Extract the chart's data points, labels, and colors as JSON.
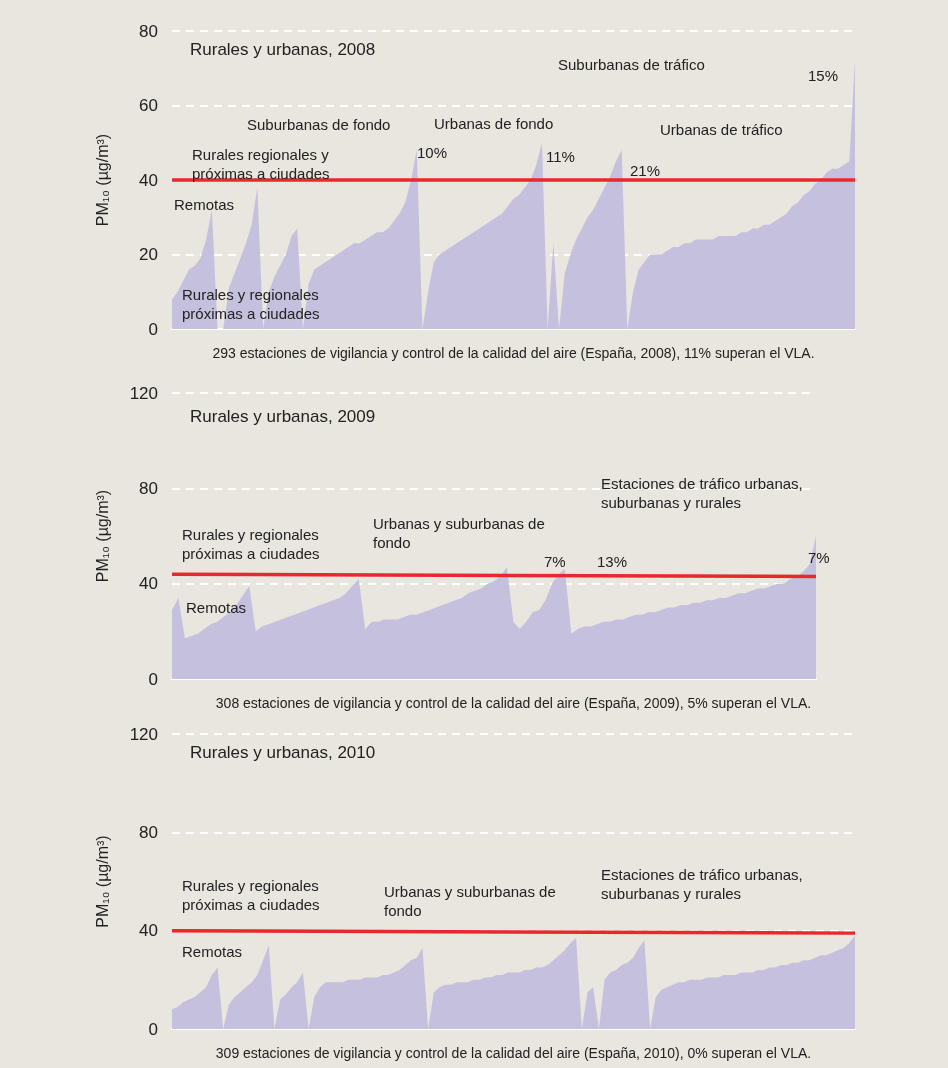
{
  "chart_data": [
    {
      "type": "area",
      "title": "Rurales y urbanas, 2008",
      "ylabel": "PM₁₀ (µg/m³)",
      "xlabel": "293 estaciones de vigilancia y control de la calidad del aire (España, 2008), 11% superan el VLA.",
      "categories": [
        null,
        null,
        null,
        null,
        null,
        null,
        null,
        null,
        null,
        null,
        null,
        null,
        null,
        null,
        null,
        null,
        null,
        null,
        null,
        null,
        null,
        null,
        null,
        null,
        null,
        null,
        null,
        null,
        null,
        null,
        null,
        null,
        null,
        null,
        null,
        null,
        null,
        null,
        null,
        null,
        null,
        null,
        null,
        null,
        null,
        null,
        null,
        null,
        null,
        null,
        null,
        null,
        null,
        null,
        null,
        null,
        null,
        null,
        null,
        null,
        null,
        null,
        null,
        null,
        null,
        null,
        null,
        null,
        null,
        null,
        null,
        null,
        null,
        null,
        null,
        null,
        null,
        null,
        null,
        null,
        null,
        null,
        null,
        null,
        null,
        null,
        null,
        null,
        null,
        null,
        null,
        null,
        null,
        null,
        null,
        null,
        null,
        null,
        null,
        null,
        null,
        null,
        null,
        null,
        null,
        null,
        null,
        null,
        null,
        null,
        null,
        null,
        null,
        null,
        null,
        null,
        null,
        null,
        null,
        null,
        null
      ],
      "series": [
        {
          "type": "area",
          "color": "#c4c0de",
          "values": [
            8,
            10,
            13,
            16,
            17,
            19,
            24,
            32,
            0,
            0,
            11,
            15,
            19,
            23,
            28,
            38,
            0,
            10,
            14,
            17,
            20,
            25,
            27,
            0,
            12,
            16,
            17,
            18,
            19,
            20,
            21,
            22,
            23,
            23,
            24,
            25,
            26,
            26,
            27,
            29,
            31,
            34,
            40,
            48,
            0,
            10,
            18,
            20,
            21,
            22,
            23,
            24,
            25,
            26,
            27,
            28,
            29,
            30,
            31,
            33,
            35,
            36,
            38,
            40,
            44,
            50,
            0,
            23,
            0,
            15,
            20,
            24,
            27,
            30,
            32,
            35,
            38,
            41,
            45,
            48,
            0,
            10,
            16,
            18,
            20,
            20,
            20,
            21,
            22,
            22,
            23,
            23,
            24,
            24,
            24,
            24,
            25,
            25,
            25,
            25,
            26,
            26,
            27,
            27,
            28,
            28,
            29,
            30,
            31,
            33,
            34,
            36,
            37,
            39,
            40,
            42,
            43,
            43,
            44,
            45,
            72
          ]
        }
      ],
      "ref_lines": [
        {
          "axis": "y",
          "value": 40,
          "color": "#e8282c"
        }
      ],
      "ylim": [
        0,
        80
      ],
      "yticks": [
        0,
        20,
        40,
        60,
        80
      ],
      "grid": "y",
      "tick_labels": "y",
      "annotations": [
        "Remotas",
        "Rurales regionales y próximas a ciudades",
        "Suburbanas de fondo",
        "Urbanas de fondo",
        "Suburbanas de tráfico",
        "Urbanas de tráfico",
        "Rurales y regionales próximas a ciudades",
        "10%",
        "11%",
        "21%",
        "15%"
      ]
    },
    {
      "type": "area",
      "title": "Rurales y urbanas, 2009",
      "ylabel": "PM₁₀ (µg/m³)",
      "xlabel": "308 estaciones de vigilancia y control de la calidad del aire (España, 2009), 5% superan el VLA.",
      "categories": [
        null,
        null,
        null,
        null,
        null,
        null,
        null,
        null,
        null,
        null,
        null,
        null,
        null,
        null,
        null,
        null,
        null,
        null,
        null,
        null,
        null,
        null,
        null,
        null,
        null,
        null,
        null,
        null,
        null,
        null,
        null,
        null,
        null,
        null,
        null,
        null,
        null,
        null,
        null,
        null,
        null,
        null,
        null,
        null,
        null,
        null,
        null,
        null,
        null,
        null,
        null,
        null,
        null,
        null,
        null,
        null,
        null,
        null,
        null,
        null,
        null,
        null,
        null,
        null,
        null,
        null,
        null,
        null,
        null,
        null,
        null,
        null,
        null,
        null,
        null,
        null,
        null,
        null,
        null,
        null,
        null,
        null,
        null,
        null,
        null,
        null,
        null,
        null,
        null,
        null,
        null,
        null,
        null,
        null,
        null,
        null,
        null,
        null,
        null,
        null,
        null
      ],
      "series": [
        {
          "type": "area",
          "color": "#c4c0de",
          "values": [
            29,
            34,
            17,
            18,
            19,
            21,
            23,
            24,
            26,
            28,
            31,
            35,
            39,
            20,
            22,
            23,
            24,
            25,
            26,
            27,
            28,
            29,
            30,
            31,
            32,
            33,
            34,
            36,
            39,
            42,
            21,
            24,
            24,
            25,
            25,
            25,
            26,
            27,
            27,
            28,
            29,
            30,
            31,
            32,
            33,
            34,
            36,
            37,
            38,
            40,
            41,
            43,
            47,
            24,
            21,
            24,
            28,
            29,
            33,
            40,
            44,
            46,
            19,
            21,
            22,
            22,
            23,
            24,
            24,
            25,
            25,
            26,
            27,
            27,
            28,
            28,
            29,
            30,
            30,
            31,
            31,
            32,
            32,
            33,
            33,
            34,
            34,
            35,
            36,
            36,
            37,
            38,
            38,
            39,
            40,
            40,
            42,
            43,
            45,
            48,
            60
          ]
        },
        {
          "type": "line",
          "color": "#e8282c",
          "values": [
            44,
            null,
            null,
            null,
            null,
            null,
            null,
            null,
            null,
            null,
            null,
            null,
            null,
            null,
            null,
            null,
            null,
            null,
            null,
            null,
            null,
            null,
            null,
            null,
            null,
            null,
            null,
            null,
            null,
            null,
            null,
            null,
            null,
            null,
            null,
            null,
            null,
            null,
            null,
            null,
            null,
            null,
            null,
            null,
            null,
            null,
            null,
            null,
            null,
            null,
            null,
            null,
            null,
            null,
            null,
            null,
            null,
            null,
            null,
            null,
            null,
            null,
            null,
            null,
            null,
            null,
            null,
            null,
            null,
            null,
            null,
            null,
            null,
            null,
            null,
            null,
            null,
            null,
            null,
            null,
            null,
            null,
            null,
            null,
            null,
            null,
            null,
            null,
            null,
            null,
            null,
            null,
            null,
            null,
            null,
            null,
            null,
            null,
            null,
            null,
            43
          ]
        }
      ],
      "ylim": [
        0,
        120
      ],
      "yticks": [
        0,
        40,
        80,
        120
      ],
      "grid": "y",
      "tick_labels": "y",
      "annotations": [
        "Rurales y regionales próximas a ciudades",
        "Remotas",
        "Urbanas y suburbanas de fondo",
        "7%",
        "13%",
        "Estaciones de tráfico urbanas, suburbanas y rurales",
        "7%"
      ]
    },
    {
      "type": "area",
      "title": "Rurales y urbanas, 2010",
      "ylabel": "PM₁₀ (µg/m³)",
      "xlabel": "309 estaciones de vigilancia y control de la calidad del aire (España, 2010), 0% superan el VLA.",
      "categories": [
        null,
        null,
        null,
        null,
        null,
        null,
        null,
        null,
        null,
        null,
        null,
        null,
        null,
        null,
        null,
        null,
        null,
        null,
        null,
        null,
        null,
        null,
        null,
        null,
        null,
        null,
        null,
        null,
        null,
        null,
        null,
        null,
        null,
        null,
        null,
        null,
        null,
        null,
        null,
        null,
        null,
        null,
        null,
        null,
        null,
        null,
        null,
        null,
        null,
        null,
        null,
        null,
        null,
        null,
        null,
        null,
        null,
        null,
        null,
        null,
        null,
        null,
        null,
        null,
        null,
        null,
        null,
        null,
        null,
        null,
        null,
        null,
        null,
        null,
        null,
        null,
        null,
        null,
        null,
        null,
        null,
        null,
        null,
        null,
        null,
        null,
        null,
        null,
        null,
        null,
        null,
        null,
        null,
        null,
        null,
        null,
        null,
        null,
        null,
        null,
        null,
        null,
        null,
        null,
        null,
        null,
        null,
        null,
        null,
        null,
        null,
        null,
        null,
        null,
        null,
        null,
        null,
        null,
        null,
        null,
        null
      ],
      "series": [
        {
          "type": "area",
          "color": "#c4c0de",
          "values": [
            8,
            9,
            11,
            12,
            13,
            15,
            17,
            22,
            25,
            0,
            10,
            13,
            15,
            17,
            19,
            22,
            28,
            34,
            0,
            12,
            14,
            17,
            19,
            23,
            0,
            13,
            17,
            19,
            19,
            19,
            19,
            20,
            20,
            20,
            21,
            21,
            21,
            22,
            22,
            23,
            24,
            26,
            28,
            29,
            33,
            0,
            15,
            17,
            18,
            18,
            19,
            19,
            19,
            20,
            20,
            21,
            21,
            22,
            22,
            23,
            23,
            23,
            24,
            24,
            25,
            25,
            26,
            28,
            30,
            32,
            35,
            37,
            0,
            15,
            17,
            0,
            20,
            23,
            24,
            26,
            27,
            29,
            33,
            36,
            0,
            13,
            16,
            17,
            18,
            19,
            19,
            20,
            20,
            20,
            21,
            21,
            21,
            22,
            22,
            22,
            23,
            23,
            23,
            24,
            24,
            25,
            25,
            26,
            26,
            27,
            27,
            28,
            28,
            29,
            30,
            30,
            31,
            32,
            33,
            35,
            38
          ]
        },
        {
          "type": "line",
          "color": "#e8282c",
          "values": [
            40,
            null,
            null,
            null,
            null,
            null,
            null,
            null,
            null,
            null,
            null,
            null,
            null,
            null,
            null,
            null,
            null,
            null,
            null,
            null,
            null,
            null,
            null,
            null,
            null,
            null,
            null,
            null,
            null,
            null,
            null,
            null,
            null,
            null,
            null,
            null,
            null,
            null,
            null,
            null,
            null,
            null,
            null,
            null,
            null,
            null,
            null,
            null,
            null,
            null,
            null,
            null,
            null,
            null,
            null,
            null,
            null,
            null,
            null,
            null,
            null,
            null,
            null,
            null,
            null,
            null,
            null,
            null,
            null,
            null,
            null,
            null,
            null,
            null,
            null,
            null,
            null,
            null,
            null,
            null,
            null,
            null,
            null,
            null,
            null,
            null,
            null,
            null,
            null,
            null,
            null,
            null,
            null,
            null,
            null,
            null,
            null,
            null,
            null,
            null,
            null,
            null,
            null,
            null,
            null,
            null,
            null,
            null,
            null,
            null,
            null,
            null,
            null,
            null,
            null,
            null,
            null,
            null,
            null,
            null,
            39
          ]
        }
      ],
      "ylim": [
        0,
        120
      ],
      "yticks": [
        0,
        40,
        80,
        120
      ],
      "grid": "y",
      "tick_labels": "y",
      "annotations": [
        "Rurales y regionales próximas a ciudades",
        "Remotas",
        "Urbanas y suburbanas de fondo",
        "Estaciones de tráfico urbanas, suburbanas y rurales"
      ]
    }
  ]
}
